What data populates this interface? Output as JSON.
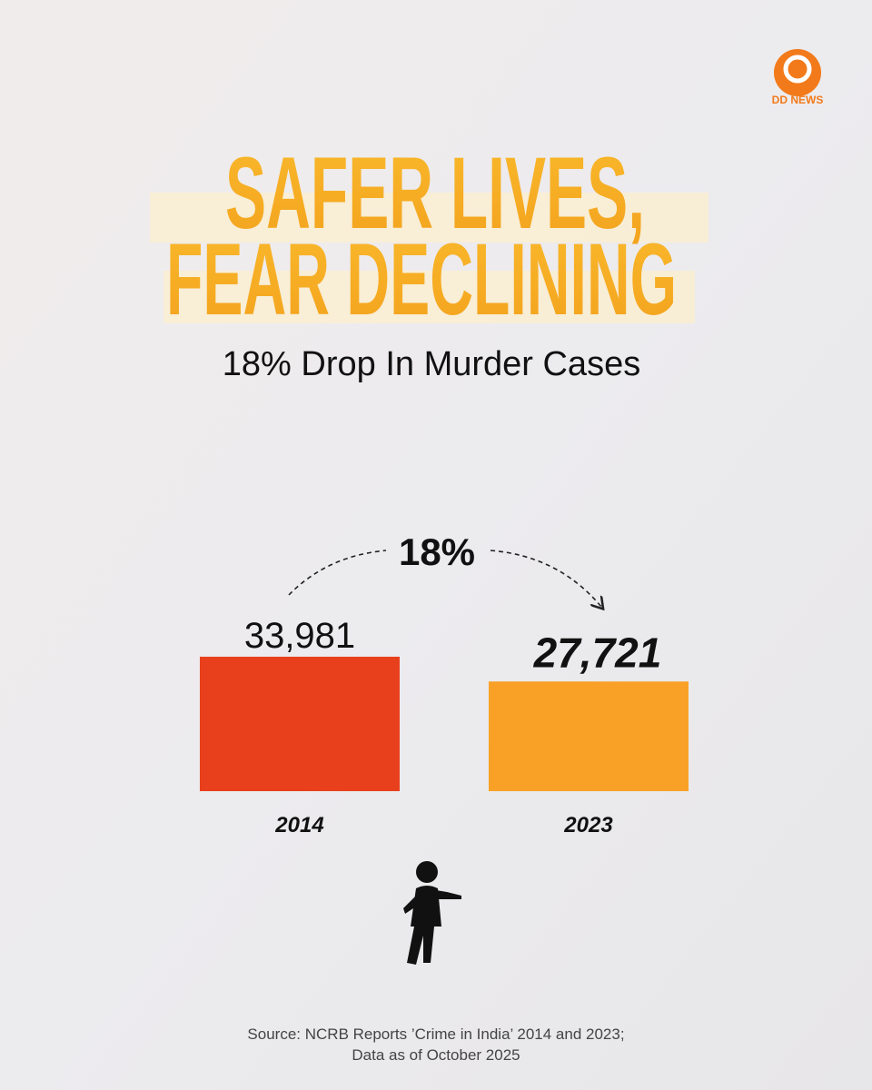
{
  "chart_data": {
    "type": "bar",
    "logo": "DD NEWS",
    "title": [
      "SAFER LIVES,",
      "FEAR DECLINING"
    ],
    "subtitle": "18% Drop In Murder Cases",
    "annotation": "18%",
    "categories": [
      "2014",
      "2023"
    ],
    "values": [
      33981,
      27721
    ],
    "value_labels": [
      "33,981",
      "27,721"
    ],
    "colors": [
      "#e8401c",
      "#f8a126"
    ],
    "source": [
      "Source: NCRB Reports ’Crime in India’ 2014 and 2023;",
      "Data as of October 2025"
    ]
  }
}
